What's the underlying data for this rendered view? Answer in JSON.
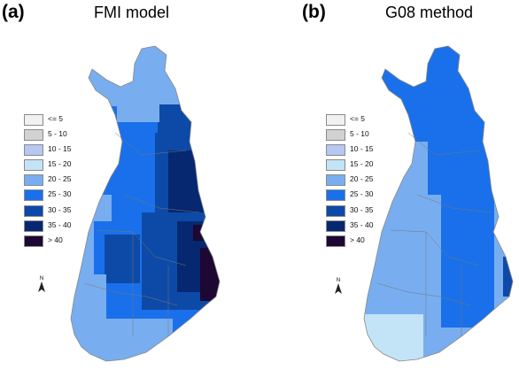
{
  "panels": [
    {
      "letter": "(a)",
      "title": "FMI model"
    },
    {
      "letter": "(b)",
      "title": "G08 method"
    }
  ],
  "legend": [
    {
      "label": "<= 5",
      "color": "#f1f1f1"
    },
    {
      "label": "5 - 10",
      "color": "#d2d2d2"
    },
    {
      "label": "10 - 15",
      "color": "#b5c8f2"
    },
    {
      "label": "15 - 20",
      "color": "#c3e3f7"
    },
    {
      "label": "20 - 25",
      "color": "#78aef0"
    },
    {
      "label": "25 - 30",
      "color": "#1a70ea"
    },
    {
      "label": "30 - 35",
      "color": "#0d4aa8"
    },
    {
      "label": "35 - 40",
      "color": "#062870"
    },
    {
      "label": "> 40",
      "color": "#1c0833"
    }
  ],
  "north_label": "N",
  "colors": {
    "border": "#888888",
    "dark_purple": "#1c0833"
  }
}
